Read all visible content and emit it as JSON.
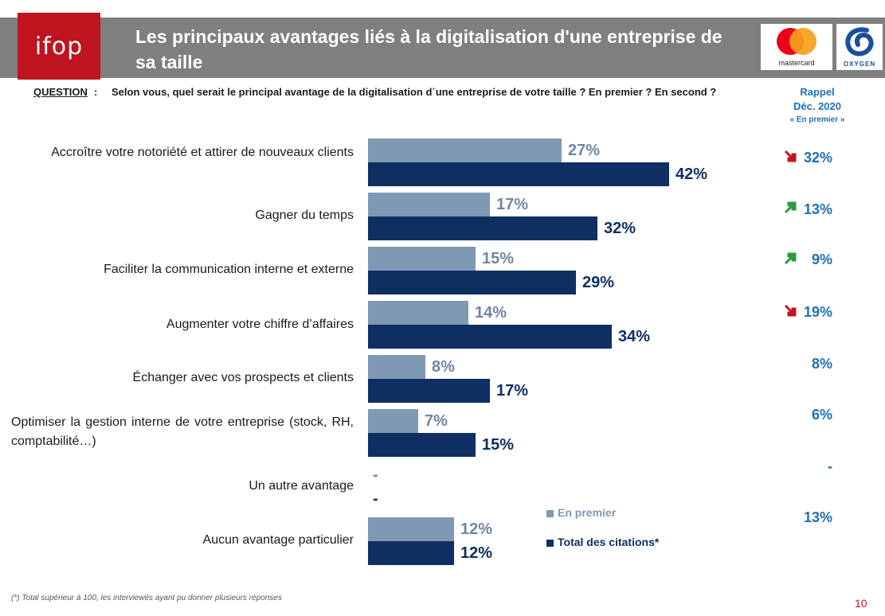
{
  "header": {
    "logo_text": "ifop",
    "title_line1": "Les principaux avantages liés à la digitalisation d'une entreprise de",
    "title_line2": "sa taille",
    "partner1": "mastercard",
    "partner2": "OXYGEN"
  },
  "question": {
    "prefix": "QUESTION",
    "colon": ":",
    "text": "Selon vous, quel serait le principal avantage de la digitalisation d´une entreprise de votre taille ? En premier ? En second ?"
  },
  "recall_header": {
    "line1": "Rappel",
    "line2": "Déc. 2020",
    "line3": "« En premier »"
  },
  "chart_data": {
    "type": "bar",
    "orientation": "horizontal",
    "categories": [
      "Accroître votre notoriété et attirer de nouveaux clients",
      "Gagner du temps",
      "Faciliter la communication interne et externe",
      "Augmenter votre chiffre d’affaires",
      "Échanger avec vos prospects et clients",
      "Optimiser la gestion interne de votre entreprise (stock, RH, comptabilité…)",
      "Un autre avantage",
      "Aucun avantage particulier"
    ],
    "series": [
      {
        "name": "En premier",
        "values": [
          27,
          17,
          15,
          14,
          8,
          7,
          null,
          12
        ],
        "labels": [
          "27%",
          "17%",
          "15%",
          "14%",
          "8%",
          "7%",
          "-",
          "12%"
        ],
        "color": "#8099b3"
      },
      {
        "name": "Total des citations*",
        "values": [
          42,
          32,
          29,
          34,
          17,
          15,
          null,
          12
        ],
        "labels": [
          "42%",
          "32%",
          "29%",
          "34%",
          "17%",
          "15%",
          "-",
          "12%"
        ],
        "color": "#0f2f62"
      }
    ],
    "recall_values": [
      "32%",
      "13%",
      "9%",
      "19%",
      "8%",
      "6%",
      "-",
      "13%"
    ],
    "recall_trend": [
      "down",
      "up",
      "up",
      "down",
      "",
      "",
      "",
      ""
    ],
    "trend_colors": {
      "up": "#2e9a3a",
      "down": "#c0141e"
    },
    "xlim": [
      0,
      100
    ],
    "grid": false,
    "legend_position": "bottom-right"
  },
  "footnote": "(*) Total supérieur à 100, les interviewés ayant pu donner plusieurs  réponses",
  "page_number": "10"
}
